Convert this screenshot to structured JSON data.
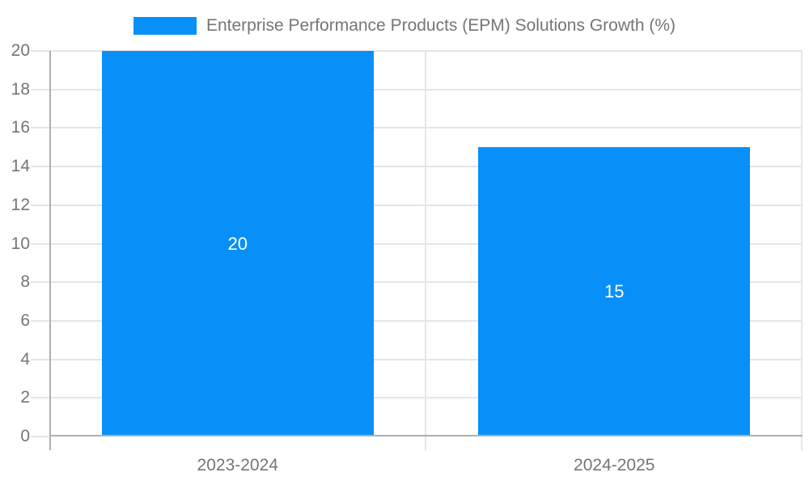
{
  "chart_data": {
    "type": "bar",
    "title": "Enterprise Performance Products (EPM) Solutions Growth (%)",
    "categories": [
      "2023-2024",
      "2024-2025"
    ],
    "values": [
      20,
      15
    ],
    "value_labels": [
      "20",
      "15"
    ],
    "xlabel": "",
    "ylabel": "",
    "ylim": [
      0,
      20
    ],
    "yticks": [
      0,
      2,
      4,
      6,
      8,
      10,
      12,
      14,
      16,
      18,
      20
    ],
    "grid": true,
    "legend_position": "top-center",
    "legend_entries": [
      "Enterprise Performance Products (EPM) Solutions Growth (%)"
    ],
    "colors": {
      "bar": "#0990F8",
      "axis_label_text": "#757575",
      "title_text": "#757575",
      "gridline": "#E6E6E6",
      "axis_line": "#B0B0B0",
      "value_label_text": "#FFFFFF",
      "background": "#FFFFFF"
    }
  }
}
